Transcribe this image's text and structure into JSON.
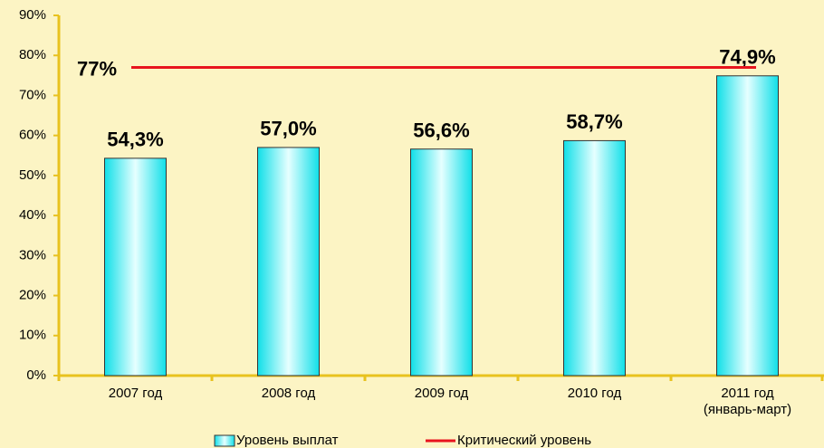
{
  "chart_data": {
    "type": "bar",
    "categories": [
      "2007 год",
      "2008 год",
      "2009 год",
      "2010 год",
      "2011 год\n(январь-март)"
    ],
    "series": [
      {
        "name": "Уровень выплат",
        "color": "#19e6ee",
        "values": [
          54.3,
          57.0,
          56.6,
          58.7,
          74.9
        ],
        "value_labels": [
          "54,3%",
          "57,0%",
          "56,6%",
          "58,7%",
          "74,9%"
        ]
      }
    ],
    "critical": {
      "name": "Критический уровень",
      "color": "#e8141e",
      "value": 77,
      "label": "77%"
    },
    "ylim": [
      0,
      90
    ],
    "yticks": [
      {
        "value": 0,
        "label": "0%"
      },
      {
        "value": 10,
        "label": "10%"
      },
      {
        "value": 20,
        "label": "20%"
      },
      {
        "value": 30,
        "label": "30%"
      },
      {
        "value": 40,
        "label": "40%"
      },
      {
        "value": 50,
        "label": "50%"
      },
      {
        "value": 60,
        "label": "60%"
      },
      {
        "value": 70,
        "label": "70%"
      },
      {
        "value": 80,
        "label": "80%"
      },
      {
        "value": 90,
        "label": "90%"
      }
    ],
    "legend": "bottom"
  }
}
